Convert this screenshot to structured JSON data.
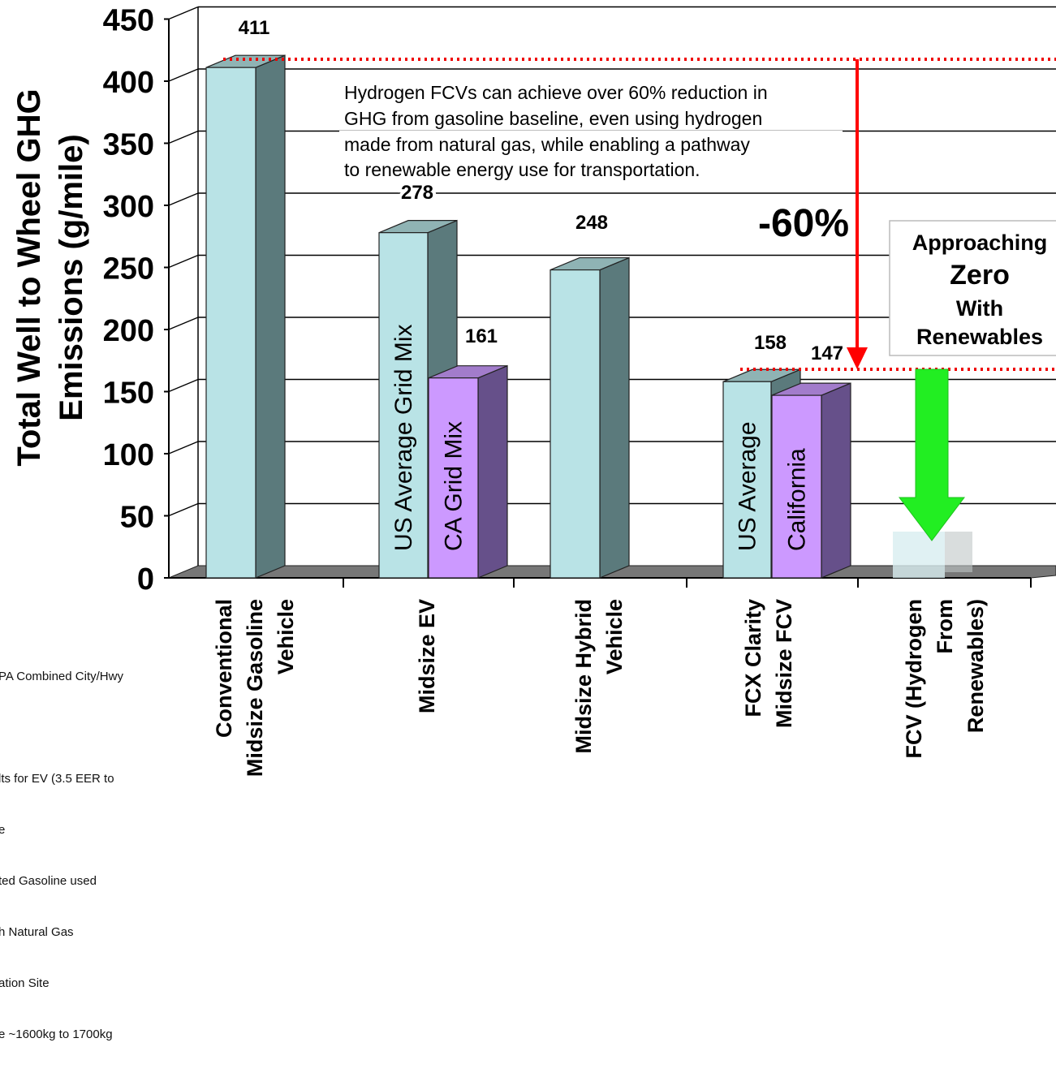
{
  "chart_data": {
    "type": "bar",
    "ylabel_line1": "Total Well to Wheel GHG",
    "ylabel_line2": "Emissions (g/mile)",
    "ylim": [
      0,
      450
    ],
    "yticks": [
      0,
      50,
      100,
      150,
      200,
      250,
      300,
      350,
      400,
      450
    ],
    "grid": true,
    "categories": [
      {
        "lines": [
          "Conventional",
          "Midsize Gasoline",
          "Vehicle"
        ]
      },
      {
        "lines": [
          "Midsize EV"
        ]
      },
      {
        "lines": [
          "Midsize Hybrid",
          "Vehicle"
        ]
      },
      {
        "lines": [
          "FCX Clarity",
          "Midsize FCV"
        ]
      },
      {
        "lines": [
          "FCV (Hydrogen",
          "From",
          "Renewables)"
        ]
      }
    ],
    "bars": [
      {
        "category": 0,
        "value": 411,
        "label": "411",
        "inner_text": "",
        "color": "#b9e3e6"
      },
      {
        "category": 1,
        "value": 278,
        "label": "278",
        "inner_text": "US Average Grid Mix",
        "color": "#b9e3e6"
      },
      {
        "category": 1,
        "value": 161,
        "label": "161",
        "inner_text": "CA Grid Mix",
        "color": "#cc99ff"
      },
      {
        "category": 2,
        "value": 248,
        "label": "248",
        "inner_text": "",
        "color": "#b9e3e6"
      },
      {
        "category": 3,
        "value": 158,
        "label": "158",
        "inner_text": "US Average",
        "color": "#b9e3e6"
      },
      {
        "category": 3,
        "value": 147,
        "label": "147",
        "inner_text": "California",
        "color": "#cc99ff"
      }
    ],
    "annotations": {
      "note_lines": [
        "Hydrogen FCVs can achieve over 60% reduction in",
        "GHG from gasoline baseline, even using hydrogen",
        "made from natural gas, while enabling a pathway",
        "to renewable energy use for transportation."
      ],
      "reduction": "-60%",
      "box_lines": [
        "Approaching",
        "Zero",
        "With",
        "Renewables"
      ]
    },
    "colors": {
      "reduction_arrow": "#ff0000",
      "renewable_arrow": "#22ee22",
      "reference_line": "#ee0000"
    }
  },
  "footnotes": [
    "PA Combined City/Hwy",
    "",
    "lts for EV (3.5 EER to",
    "e",
    "ted Gasoline used",
    "h Natural Gas",
    "ation Site",
    "e ~1600kg to 1700kg"
  ]
}
